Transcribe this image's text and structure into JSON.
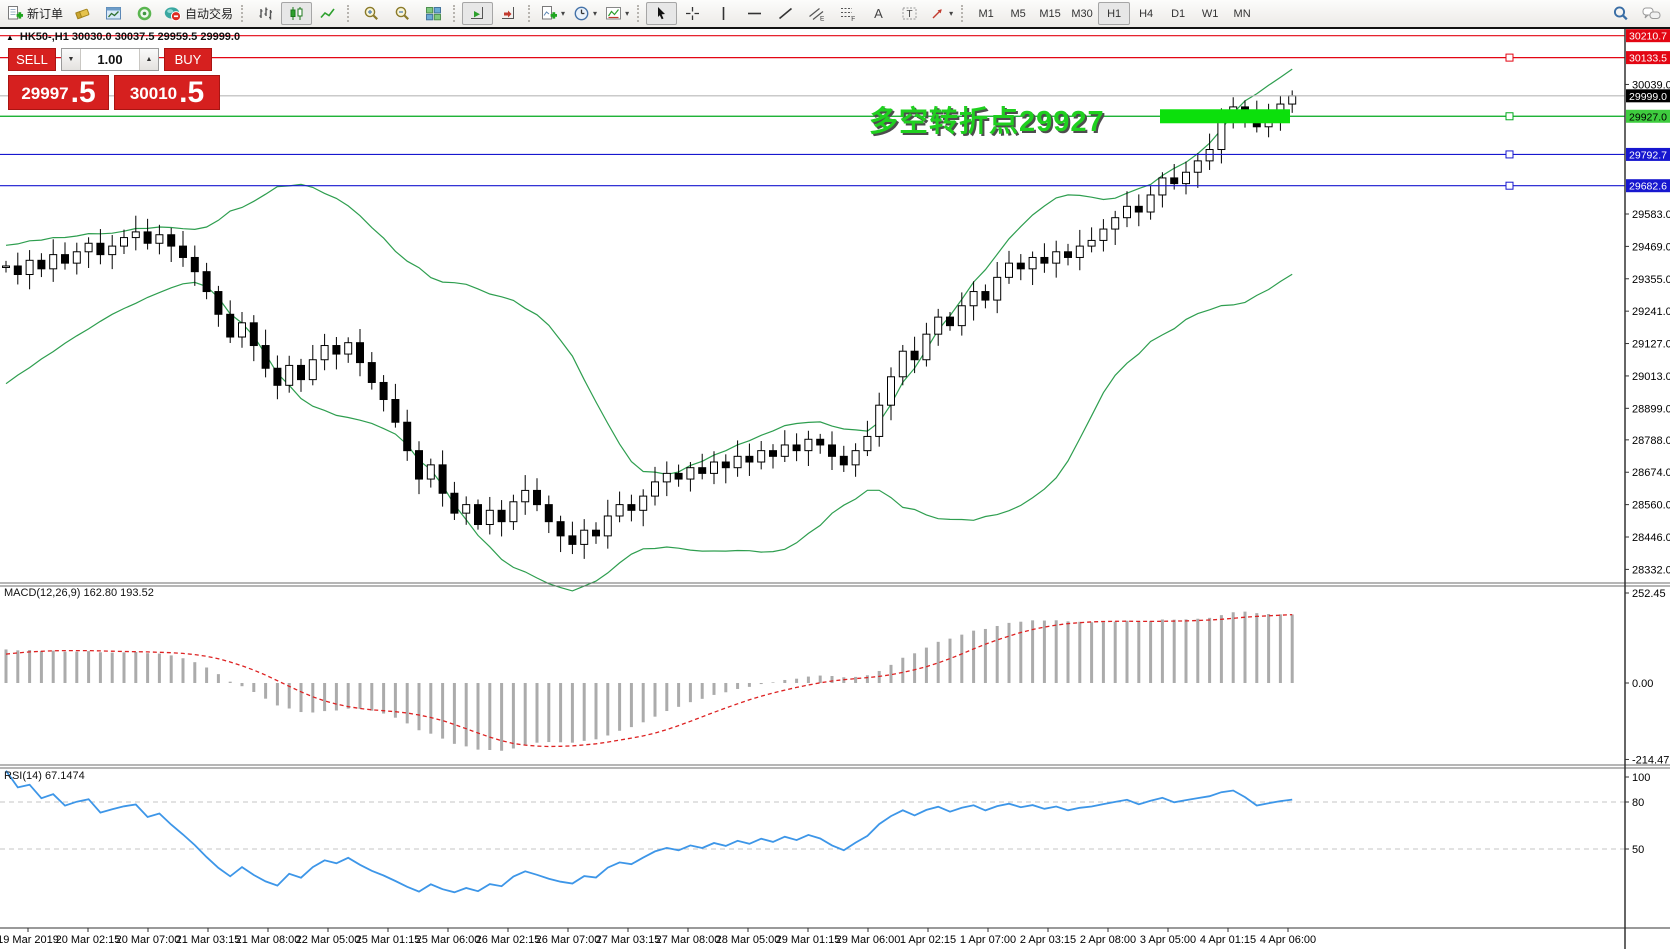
{
  "toolbar": {
    "new_order_label": "新订单",
    "autotrade_label": "自动交易",
    "glyphs": {
      "panel_toggle": "▲",
      "dropdown": "▾",
      "stepper_down": "▼",
      "stepper_up": "▲",
      "text_tool": "A",
      "label_tool": "T",
      "channel_tag": "E",
      "fibo_tag": "F"
    },
    "timeframes": [
      "M1",
      "M5",
      "M15",
      "M30",
      "H1",
      "H4",
      "D1",
      "W1",
      "MN"
    ],
    "active_timeframe": "H1"
  },
  "header": {
    "text": "HK50-,H1  30030.0 30037.5 29959.5 29999.0",
    "symbol": "HK50-",
    "period": "H1",
    "open": "30030.0",
    "high": "30037.5",
    "low": "29959.5",
    "close": "29999.0"
  },
  "trade_panel": {
    "sell_label": "SELL",
    "buy_label": "BUY",
    "volume": "1.00",
    "sell_price_main": "29997",
    "sell_price_frac": ".5",
    "buy_price_main": "30010",
    "buy_price_frac": ".5"
  },
  "annotation": {
    "text": "多空转折点29927"
  },
  "indicators": {
    "macd_label": "MACD(12,26,9) 162.80 193.52",
    "rsi_label": "RSI(14) 67.1474"
  },
  "colors": {
    "up_candle": "#ffffff",
    "down_candle": "#000000",
    "candle_outline": "#000000",
    "band": "#2e9e4f",
    "macd_hist": "#ababab",
    "macd_signal": "#dd2222",
    "rsi_line": "#3d96e8",
    "annotation_green": "#1fd01f",
    "panel_red": "#d6201f",
    "highlight_green": "#0ce00c",
    "current_price_line": "#b8b8b8",
    "resistance_red": "#e30613",
    "support_blue": "#1717cf",
    "pivot_green": "#00a81c"
  },
  "axes": {
    "price_ticks": [
      30039.0,
      29583.0,
      29469.0,
      29355.0,
      29241.0,
      29127.0,
      29013.0,
      28899.0,
      28788.0,
      28674.0,
      28560.0,
      28446.0,
      28332.0
    ],
    "price_badges": [
      {
        "label": "30210.7",
        "value": 30210.7,
        "bg": "#e30613",
        "fg": "#ffffff"
      },
      {
        "label": "30133.5",
        "value": 30133.5,
        "bg": "#e30613",
        "fg": "#ffffff"
      },
      {
        "label": "29999.0",
        "value": 29999.0,
        "bg": "#000000",
        "fg": "#ffffff"
      },
      {
        "label": "29927.0",
        "value": 29927.0,
        "bg": "#3ecc3e",
        "fg": "#000000"
      },
      {
        "label": "29792.7",
        "value": 29792.7,
        "bg": "#1717cf",
        "fg": "#ffffff"
      },
      {
        "label": "29682.6",
        "value": 29682.6,
        "bg": "#1717cf",
        "fg": "#ffffff"
      }
    ],
    "macd_ticks": [
      {
        "v": 252.45,
        "label": "252.45"
      },
      {
        "v": 0,
        "label": "0.00"
      },
      {
        "v": -214.47,
        "label": "-214.47"
      }
    ],
    "rsi_ticks": [
      {
        "v": 100,
        "label": "100"
      },
      {
        "v": 80,
        "label": "80"
      },
      {
        "v": 50,
        "label": "50"
      }
    ],
    "time_labels": [
      "19 Mar 2019",
      "20 Mar 02:15",
      "20 Mar 07:00",
      "21 Mar 03:15",
      "21 Mar 08:00",
      "22 Mar 05:00",
      "25 Mar 01:15",
      "25 Mar 06:00",
      "26 Mar 02:15",
      "26 Mar 07:00",
      "27 Mar 03:15",
      "27 Mar 08:00",
      "28 Mar 05:00",
      "29 Mar 01:15",
      "29 Mar 06:00",
      "1 Apr 02:15",
      "1 Apr 07:00",
      "2 Apr 03:15",
      "2 Apr 08:00",
      "3 Apr 05:00",
      "4 Apr 01:15",
      "4 Apr 06:00"
    ]
  },
  "levels": [
    {
      "value": 30210.7,
      "color": "#e30613",
      "marker": false
    },
    {
      "value": 30133.5,
      "color": "#e30613",
      "marker": true
    },
    {
      "value": 29999.0,
      "color": "#b8b8b8",
      "marker": false
    },
    {
      "value": 29927.0,
      "color": "#00a81c",
      "marker": true
    },
    {
      "value": 29792.7,
      "color": "#1717cf",
      "marker": true
    },
    {
      "value": 29682.6,
      "color": "#1717cf",
      "marker": true
    }
  ],
  "chart_data": {
    "type": "candlestick",
    "symbol": "HK50-",
    "timeframe": "H1",
    "visible_price_range": [
      28300,
      30260
    ],
    "indicator_settings": {
      "bollinger": [
        20,
        2
      ],
      "macd": [
        12,
        26,
        9
      ],
      "rsi": [
        14
      ]
    },
    "rsi_levels": [
      80,
      50
    ],
    "preroll": [
      29000,
      29020,
      29045,
      29065,
      29090,
      29110,
      29135,
      29155,
      29180,
      29200,
      29225,
      29245,
      29270,
      29290,
      29315,
      29335,
      29355,
      29370,
      29385,
      29395
    ],
    "closes": [
      29400,
      29370,
      29420,
      29390,
      29440,
      29410,
      29450,
      29480,
      29440,
      29470,
      29500,
      29520,
      29480,
      29510,
      29470,
      29430,
      29380,
      29310,
      29230,
      29150,
      29200,
      29120,
      29040,
      28980,
      29050,
      29000,
      29070,
      29120,
      29090,
      29130,
      29060,
      28990,
      28930,
      28850,
      28750,
      28650,
      28700,
      28600,
      28530,
      28560,
      28490,
      28540,
      28500,
      28570,
      28610,
      28560,
      28500,
      28450,
      28420,
      28470,
      28450,
      28520,
      28560,
      28540,
      28590,
      28640,
      28670,
      28650,
      28690,
      28670,
      28710,
      28690,
      28730,
      28710,
      28750,
      28730,
      28770,
      28750,
      28790,
      28770,
      28730,
      28700,
      28750,
      28800,
      28910,
      29010,
      29100,
      29070,
      29160,
      29220,
      29190,
      29260,
      29310,
      29280,
      29360,
      29410,
      29390,
      29430,
      29410,
      29450,
      29430,
      29470,
      29490,
      29530,
      29570,
      29610,
      29590,
      29650,
      29710,
      29690,
      29730,
      29770,
      29810,
      29910,
      29960,
      29930,
      29890,
      29930,
      29970,
      29999
    ]
  }
}
